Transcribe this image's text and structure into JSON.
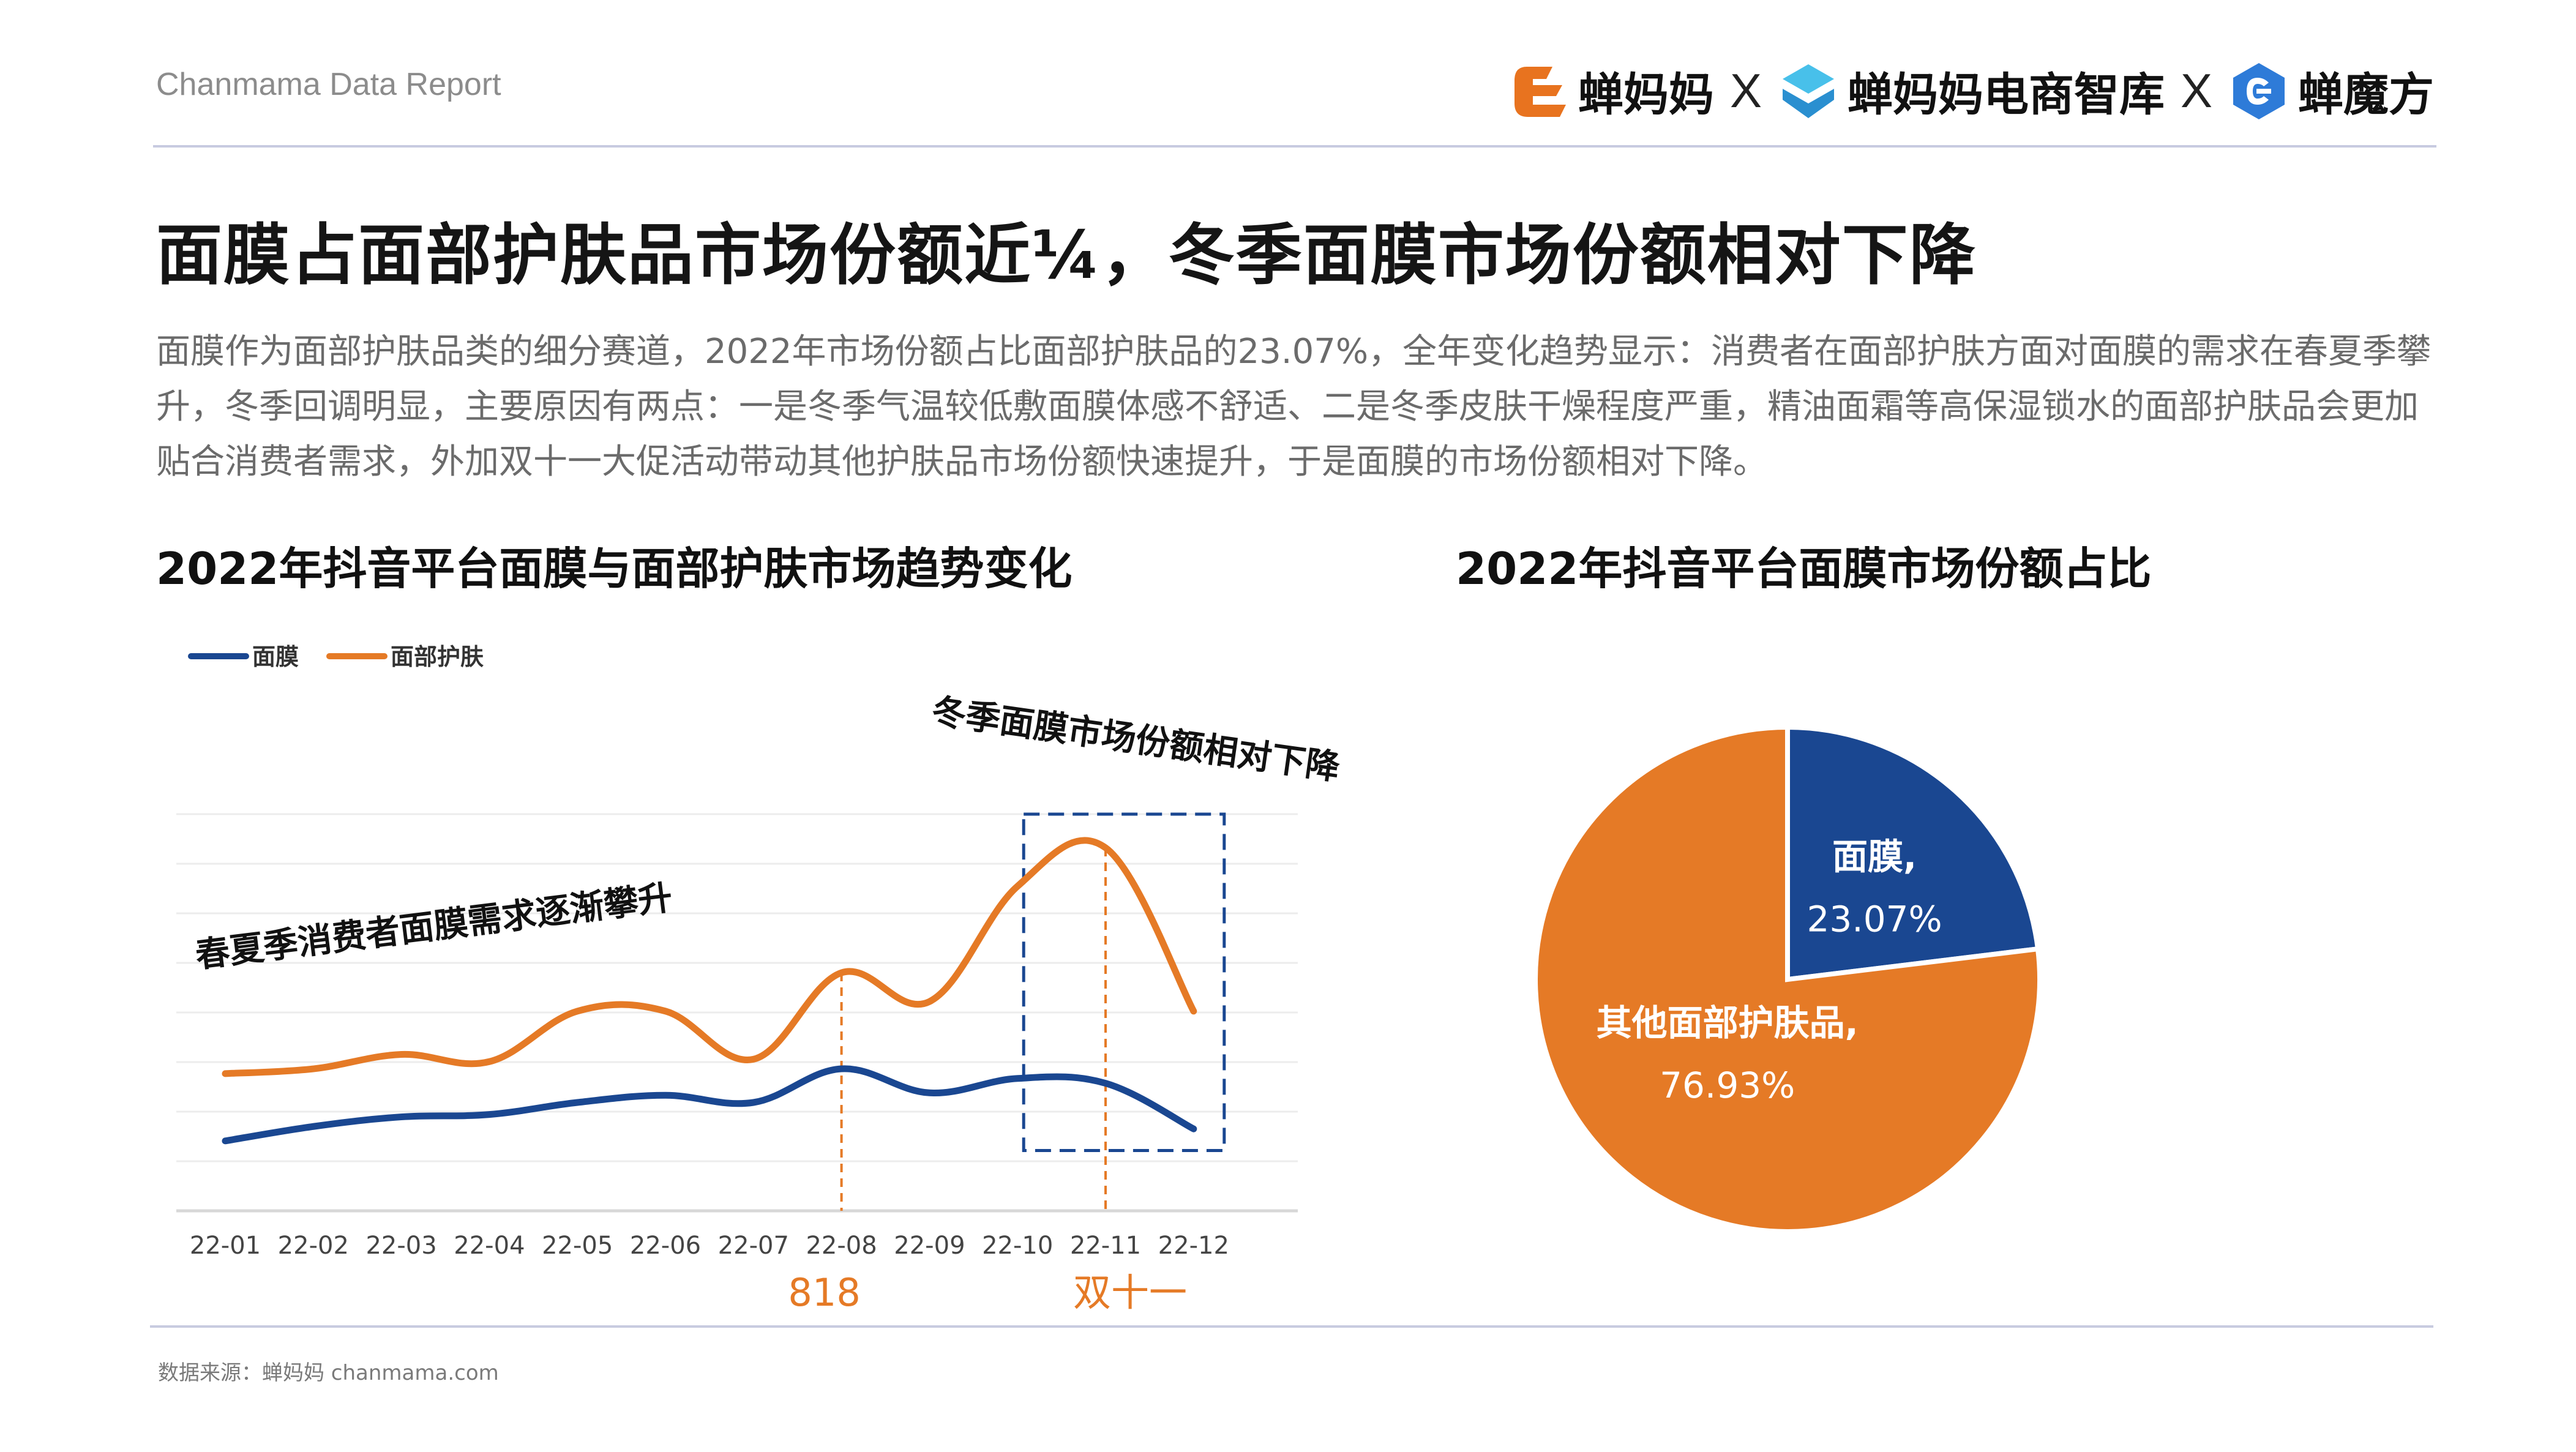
{
  "header": {
    "report_name": "Chanmama Data Report",
    "brands": [
      {
        "name": "蝉妈妈",
        "icon": "chanmama-logo-icon",
        "color": "#e8731f"
      },
      {
        "name": "蝉妈妈电商智库",
        "icon": "chanmama-think-tank-logo-icon",
        "color": "#2fa6dc"
      },
      {
        "name": "蝉魔方",
        "icon": "chanmofang-logo-icon",
        "color": "#2e7bd8"
      }
    ],
    "separator": "X"
  },
  "page_title": "面膜占面部护肤品市场份额近¼，冬季面膜市场份额相对下降",
  "intro": "面膜作为面部护肤品类的细分赛道，2022年市场份额占比面部护肤品的23.07%，全年变化趋势显示：消费者在面部护肤方面对面膜的需求在春夏季攀升，冬季回调明显，主要原因有两点：一是冬季气温较低敷面膜体感不舒适、二是冬季皮肤干燥程度严重，精油面霜等高保湿锁水的面部护肤品会更加贴合消费者需求，外加双十一大促活动带动其他护肤品市场份额快速提升，于是面膜的市场份额相对下降。",
  "footer": {
    "source": "数据来源：蝉妈妈 chanmama.com"
  },
  "colors": {
    "mask": "#1a4791",
    "facial_care": "#e57a26",
    "grid": "#e6e6e6",
    "accent_text": "#e57a26"
  },
  "chart_data": [
    {
      "type": "line",
      "title": "2022年抖音平台面膜与面部护肤市场趋势变化",
      "categories": [
        "22-01",
        "22-02",
        "22-03",
        "22-04",
        "22-05",
        "22-06",
        "22-07",
        "22-08",
        "22-09",
        "22-10",
        "22-11",
        "22-12"
      ],
      "series": [
        {
          "name": "面膜",
          "values": [
            2.4,
            3.0,
            3.4,
            3.5,
            4.0,
            4.3,
            4.0,
            5.4,
            4.4,
            5.0,
            4.8,
            2.9
          ]
        },
        {
          "name": "面部护肤",
          "values": [
            5.2,
            5.4,
            6.0,
            5.7,
            7.8,
            7.8,
            5.8,
            9.4,
            8.2,
            13.0,
            14.6,
            7.8
          ]
        }
      ],
      "ylim": [
        0,
        16
      ],
      "grid": true,
      "legend_position": "top-left",
      "annotations": [
        {
          "text": "春夏季消费者面膜需求逐渐攀升"
        },
        {
          "text": "冬季面膜市场份额相对下降"
        },
        {
          "text": "818",
          "category": "22-08"
        },
        {
          "text": "双十一",
          "category": "22-11"
        }
      ],
      "highlight_range": [
        "22-10",
        "22-12"
      ]
    },
    {
      "type": "pie",
      "title": "2022年抖音平台面膜市场份额占比",
      "slices": [
        {
          "label": "面膜,",
          "value": 23.07,
          "display": "23.07%"
        },
        {
          "label": "其他面部护肤品,",
          "value": 76.93,
          "display": "76.93%"
        }
      ]
    }
  ]
}
